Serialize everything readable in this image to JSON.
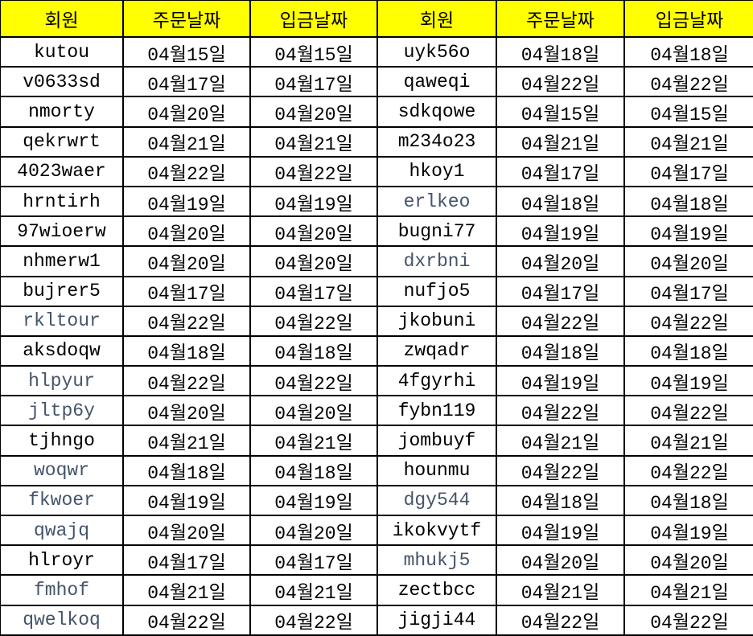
{
  "colors": {
    "header_bg": "#FFFF00",
    "muted_text": "#44546A",
    "text": "#000000"
  },
  "headers": [
    "회원",
    "주문날짜",
    "입금날짜",
    "회원",
    "주문날짜",
    "입금날짜"
  ],
  "rows": [
    [
      {
        "v": "kutou"
      },
      "04월15일",
      "04월15일",
      {
        "v": "uyk56o"
      },
      "04월18일",
      "04월18일"
    ],
    [
      {
        "v": "v0633sd"
      },
      "04월17일",
      "04월17일",
      {
        "v": "qaweqi"
      },
      "04월22일",
      "04월22일"
    ],
    [
      {
        "v": "nmorty"
      },
      "04월20일",
      "04월20일",
      {
        "v": "sdkqowe"
      },
      "04월15일",
      "04월15일"
    ],
    [
      {
        "v": "qekrwrt"
      },
      "04월21일",
      "04월21일",
      {
        "v": "m234o23"
      },
      "04월21일",
      "04월21일"
    ],
    [
      {
        "v": "4023waer"
      },
      "04월22일",
      "04월22일",
      {
        "v": "hkoy1"
      },
      "04월17일",
      "04월17일"
    ],
    [
      {
        "v": "hrntirh"
      },
      "04월19일",
      "04월19일",
      {
        "v": "erlkeo",
        "m": true
      },
      "04월18일",
      "04월18일"
    ],
    [
      {
        "v": "97wioerw"
      },
      "04월20일",
      "04월20일",
      {
        "v": "bugni77"
      },
      "04월19일",
      "04월19일"
    ],
    [
      {
        "v": "nhmerw1"
      },
      "04월20일",
      "04월20일",
      {
        "v": "dxrbni",
        "m": true
      },
      "04월20일",
      "04월20일"
    ],
    [
      {
        "v": "bujrer5"
      },
      "04월17일",
      "04월17일",
      {
        "v": "nufjo5"
      },
      "04월17일",
      "04월17일"
    ],
    [
      {
        "v": "rkltour",
        "m": true
      },
      "04월22일",
      "04월22일",
      {
        "v": "jkobuni"
      },
      "04월22일",
      "04월22일"
    ],
    [
      {
        "v": "aksdoqw"
      },
      "04월18일",
      "04월18일",
      {
        "v": "zwqadr"
      },
      "04월18일",
      "04월18일"
    ],
    [
      {
        "v": "hlpyur",
        "m": true
      },
      "04월22일",
      "04월22일",
      {
        "v": "4fgyrhi"
      },
      "04월19일",
      "04월19일"
    ],
    [
      {
        "v": "jltp6y",
        "m": true
      },
      "04월20일",
      "04월20일",
      {
        "v": "fybn119"
      },
      "04월22일",
      "04월22일"
    ],
    [
      {
        "v": "tjhngo"
      },
      "04월21일",
      "04월21일",
      {
        "v": "jombuyf"
      },
      "04월21일",
      "04월21일"
    ],
    [
      {
        "v": "woqwr",
        "m": true
      },
      "04월18일",
      "04월18일",
      {
        "v": "hounmu"
      },
      "04월22일",
      "04월22일"
    ],
    [
      {
        "v": "fkwoer",
        "m": true
      },
      "04월19일",
      "04월19일",
      {
        "v": "dgy544",
        "m": true
      },
      "04월18일",
      "04월18일"
    ],
    [
      {
        "v": "qwajq",
        "m": true
      },
      "04월20일",
      "04월20일",
      {
        "v": "ikokvytf"
      },
      "04월19일",
      "04월19일"
    ],
    [
      {
        "v": "hlroyr"
      },
      "04월17일",
      "04월17일",
      {
        "v": "mhukj5",
        "m": true
      },
      "04월20일",
      "04월20일"
    ],
    [
      {
        "v": "fmhof",
        "m": true
      },
      "04월21일",
      "04월21일",
      {
        "v": "zectbcc"
      },
      "04월21일",
      "04월21일"
    ],
    [
      {
        "v": "qwelkoq",
        "m": true
      },
      "04월22일",
      "04월22일",
      {
        "v": "jigji44"
      },
      "04월22일",
      "04월22일"
    ]
  ]
}
